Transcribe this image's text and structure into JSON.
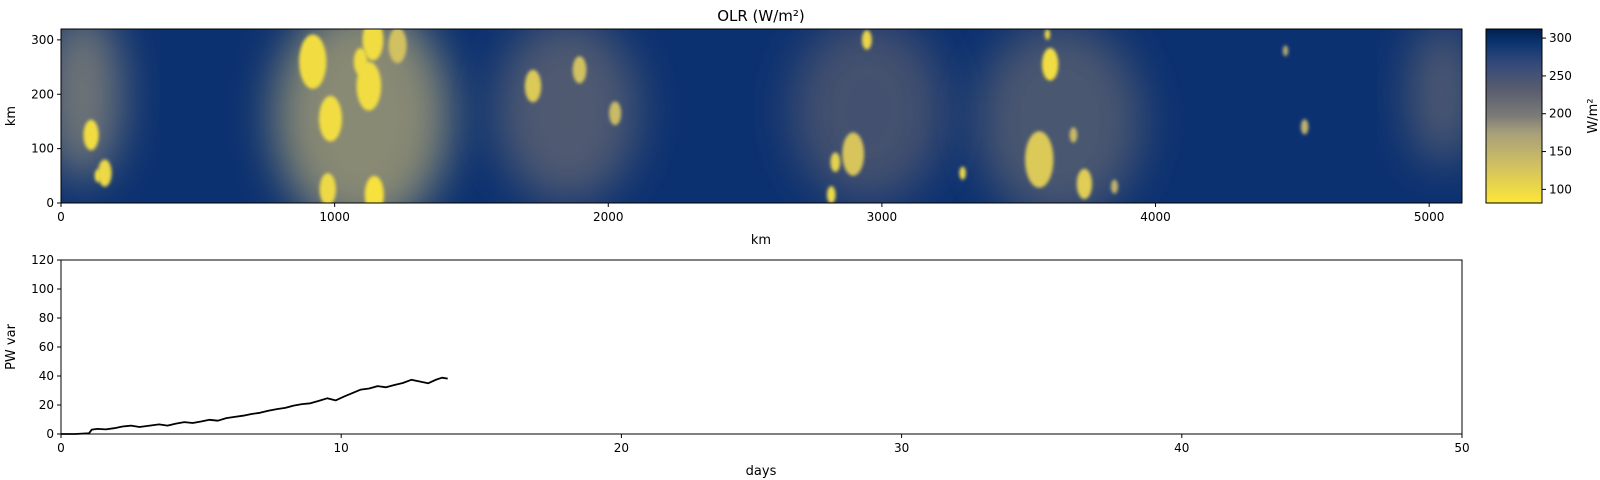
{
  "chart_data": [
    {
      "type": "heatmap",
      "title": "OLR (W/m²)",
      "xlabel": "km",
      "ylabel": "km",
      "xlim": [
        0,
        5120
      ],
      "ylim": [
        0,
        320
      ],
      "xticks": [
        0,
        1000,
        2000,
        3000,
        4000,
        5000
      ],
      "yticks": [
        0,
        100,
        200,
        300
      ],
      "colorbar": {
        "label": "W/m²",
        "range": [
          82,
          312
        ],
        "ticks": [
          100,
          150,
          200,
          250,
          300
        ],
        "colormap": "cividis",
        "low_color": "#fde737",
        "mid_color": "#7c7b78",
        "high_color": "#00204c"
      },
      "bright_cells": [
        {
          "x": 110,
          "y": 125,
          "r": 28,
          "v": 95
        },
        {
          "x": 160,
          "y": 55,
          "r": 25,
          "v": 100
        },
        {
          "x": 135,
          "y": 50,
          "r": 12,
          "v": 95
        },
        {
          "x": 920,
          "y": 260,
          "r": 50,
          "v": 95
        },
        {
          "x": 985,
          "y": 155,
          "r": 42,
          "v": 95
        },
        {
          "x": 1125,
          "y": 215,
          "r": 45,
          "v": 95
        },
        {
          "x": 1095,
          "y": 260,
          "r": 25,
          "v": 95
        },
        {
          "x": 1140,
          "y": 300,
          "r": 38,
          "v": 95
        },
        {
          "x": 1230,
          "y": 290,
          "r": 33,
          "v": 130
        },
        {
          "x": 975,
          "y": 25,
          "r": 30,
          "v": 100
        },
        {
          "x": 1145,
          "y": 15,
          "r": 35,
          "v": 90
        },
        {
          "x": 1725,
          "y": 215,
          "r": 30,
          "v": 120
        },
        {
          "x": 1895,
          "y": 245,
          "r": 25,
          "v": 130
        },
        {
          "x": 2025,
          "y": 165,
          "r": 22,
          "v": 140
        },
        {
          "x": 2815,
          "y": 15,
          "r": 16,
          "v": 100
        },
        {
          "x": 2830,
          "y": 75,
          "r": 18,
          "v": 110
        },
        {
          "x": 2895,
          "y": 90,
          "r": 40,
          "v": 125
        },
        {
          "x": 2945,
          "y": 300,
          "r": 18,
          "v": 105
        },
        {
          "x": 3295,
          "y": 55,
          "r": 12,
          "v": 100
        },
        {
          "x": 3575,
          "y": 80,
          "r": 52,
          "v": 120
        },
        {
          "x": 3615,
          "y": 255,
          "r": 30,
          "v": 95
        },
        {
          "x": 3605,
          "y": 310,
          "r": 10,
          "v": 100
        },
        {
          "x": 3740,
          "y": 35,
          "r": 28,
          "v": 115
        },
        {
          "x": 3700,
          "y": 125,
          "r": 14,
          "v": 140
        },
        {
          "x": 3850,
          "y": 30,
          "r": 13,
          "v": 150
        },
        {
          "x": 4545,
          "y": 140,
          "r": 14,
          "v": 150
        },
        {
          "x": 4475,
          "y": 280,
          "r": 10,
          "v": 160
        }
      ],
      "bright_regions": [
        {
          "x": 80,
          "y": 200,
          "rx": 140,
          "ry": 160,
          "v": 185
        },
        {
          "x": 1100,
          "y": 160,
          "rx": 320,
          "ry": 210,
          "v": 165
        },
        {
          "x": 1850,
          "y": 170,
          "rx": 260,
          "ry": 170,
          "v": 220
        },
        {
          "x": 2950,
          "y": 170,
          "rx": 280,
          "ry": 170,
          "v": 235
        },
        {
          "x": 3650,
          "y": 150,
          "rx": 300,
          "ry": 180,
          "v": 225
        },
        {
          "x": 5050,
          "y": 200,
          "rx": 120,
          "ry": 130,
          "v": 220
        }
      ]
    },
    {
      "type": "line",
      "title": "",
      "xlabel": "days",
      "ylabel": "PW var",
      "xlim": [
        0,
        50
      ],
      "ylim": [
        0,
        120
      ],
      "xticks": [
        0,
        10,
        20,
        30,
        40,
        50
      ],
      "yticks": [
        0,
        20,
        40,
        60,
        80,
        100,
        120
      ],
      "color": "#000000",
      "x": [
        0,
        0.5,
        1.0,
        1.1,
        1.3,
        1.6,
        1.9,
        2.2,
        2.5,
        2.8,
        3.1,
        3.5,
        3.8,
        4.1,
        4.4,
        4.7,
        5.0,
        5.3,
        5.6,
        5.9,
        6.2,
        6.5,
        6.8,
        7.1,
        7.4,
        7.7,
        8.0,
        8.3,
        8.6,
        8.9,
        9.2,
        9.5,
        9.8,
        10.1,
        10.4,
        10.7,
        11.0,
        11.3,
        11.6,
        11.9,
        12.2,
        12.5,
        12.8,
        13.1,
        13.4,
        13.6,
        13.8
      ],
      "y": [
        0,
        0,
        0.5,
        3.0,
        3.5,
        3.2,
        4.0,
        5.2,
        5.8,
        4.8,
        5.6,
        6.6,
        5.8,
        7.2,
        8.2,
        7.6,
        8.6,
        9.8,
        9.2,
        11.0,
        11.8,
        12.6,
        13.8,
        14.6,
        16.0,
        17.2,
        18.0,
        19.6,
        20.6,
        21.2,
        22.8,
        24.6,
        23.2,
        25.8,
        28.2,
        30.6,
        31.4,
        33.0,
        32.2,
        33.8,
        35.2,
        37.4,
        36.2,
        35.0,
        37.6,
        38.8,
        38.2
      ]
    }
  ]
}
